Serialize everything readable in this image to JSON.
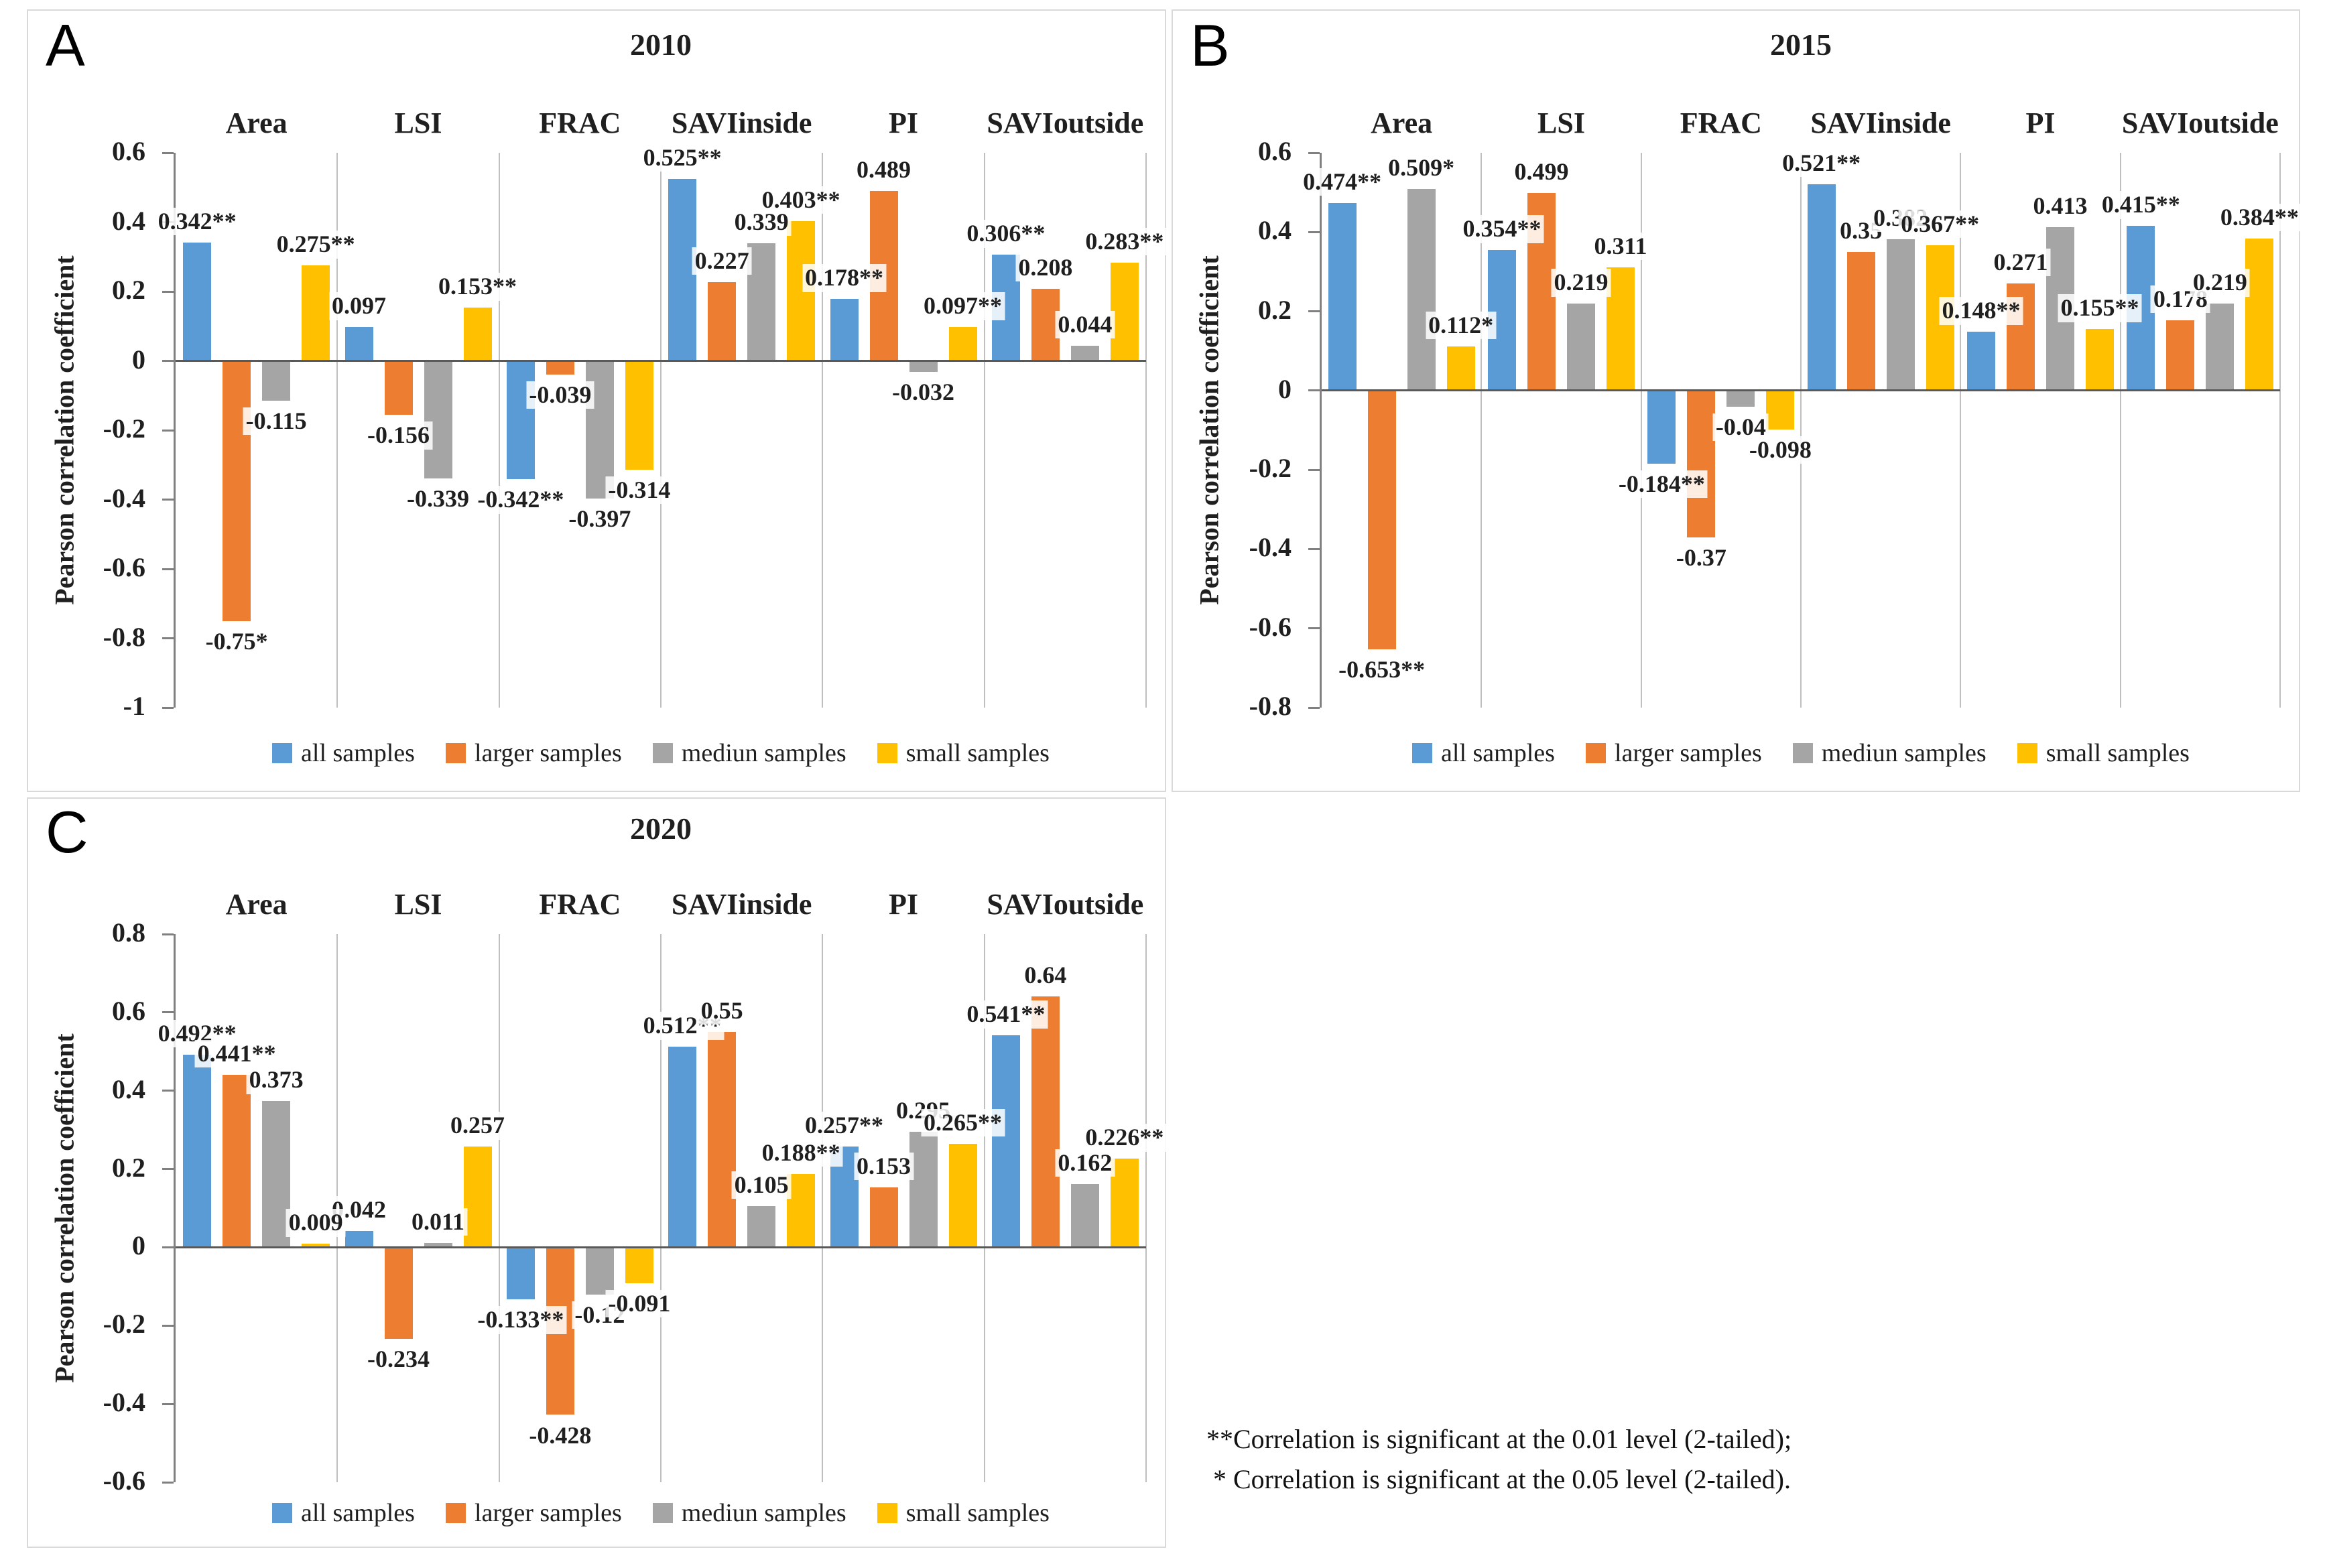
{
  "page": {
    "background": "#ffffff"
  },
  "palette": {
    "all_samples": "#5B9BD5",
    "larger_samples": "#ED7D31",
    "mediun_samples": "#A5A5A5",
    "small_samples": "#FFC000",
    "axis": "#808080",
    "zero_line": "#595959",
    "separator": "#BFBFBF",
    "panel_border": "#D9D9D9"
  },
  "note": {
    "line1": "**Correlation is significant at the 0.01 level (2-tailed);",
    "line2": " * Correlation is significant at the 0.05 level (2-tailed)."
  },
  "chart_data": [
    {
      "type": "bar",
      "panel_label": "A",
      "title": "2010",
      "ylabel": "Pearson correlation coefficient",
      "ylim": [
        -1,
        0.6
      ],
      "ytick_step": 0.2,
      "grid": "vertical-category-separators",
      "legend_position": "bottom",
      "categories": [
        "Area",
        "LSI",
        "FRAC",
        "SAVIinside",
        "PI",
        "SAVIoutside"
      ],
      "series": [
        {
          "name": "all samples",
          "color": "#5B9BD5",
          "values": [
            0.342,
            0.097,
            -0.342,
            0.525,
            0.178,
            0.306
          ],
          "labels": [
            "0.342**",
            "0.097",
            "-0.342**",
            "0.525**",
            "0.178**",
            "0.306**"
          ]
        },
        {
          "name": "larger samples",
          "color": "#ED7D31",
          "values": [
            -0.75,
            -0.156,
            -0.039,
            0.227,
            0.489,
            0.208
          ],
          "labels": [
            "-0.75*",
            "-0.156",
            "-0.039",
            "0.227",
            "0.489",
            "0.208"
          ]
        },
        {
          "name": "mediun samples",
          "color": "#A5A5A5",
          "values": [
            -0.115,
            -0.339,
            -0.397,
            0.339,
            -0.032,
            0.044
          ],
          "labels": [
            "-0.115",
            "-0.339",
            "-0.397",
            "0.339",
            "-0.032",
            "0.044"
          ]
        },
        {
          "name": "small samples",
          "color": "#FFC000",
          "values": [
            0.275,
            0.153,
            -0.314,
            0.403,
            0.097,
            0.283
          ],
          "labels": [
            "0.275**",
            "0.153**",
            "-0.314",
            "0.403**",
            "0.097**",
            "0.283**"
          ]
        }
      ]
    },
    {
      "type": "bar",
      "panel_label": "B",
      "title": "2015",
      "ylabel": "Pearson correlation coefficient",
      "ylim": [
        -0.8,
        0.6
      ],
      "ytick_step": 0.2,
      "grid": "vertical-category-separators",
      "legend_position": "bottom",
      "categories": [
        "Area",
        "LSI",
        "FRAC",
        "SAVIinside",
        "PI",
        "SAVIoutside"
      ],
      "series": [
        {
          "name": "all samples",
          "color": "#5B9BD5",
          "values": [
            0.474,
            0.354,
            -0.184,
            0.521,
            0.148,
            0.415
          ],
          "labels": [
            "0.474**",
            "0.354**",
            "-0.184**",
            "0.521**",
            "0.148**",
            "0.415**"
          ]
        },
        {
          "name": "larger samples",
          "color": "#ED7D31",
          "values": [
            -0.653,
            0.499,
            -0.37,
            0.35,
            0.271,
            0.178
          ],
          "labels": [
            "-0.653**",
            "0.499",
            "-0.37",
            "0.35",
            "0.271",
            "0.178"
          ]
        },
        {
          "name": "mediun samples",
          "color": "#A5A5A5",
          "values": [
            0.509,
            0.219,
            -0.04,
            0.382,
            0.413,
            0.219
          ],
          "labels": [
            "0.509*",
            "0.219",
            "-0.04",
            "0.382",
            "0.413",
            "0.219"
          ]
        },
        {
          "name": "small samples",
          "color": "#FFC000",
          "values": [
            0.112,
            0.311,
            -0.098,
            0.367,
            0.155,
            0.384
          ],
          "labels": [
            "0.112*",
            "0.311",
            "-0.098",
            "0.367**",
            "0.155**",
            "0.384**"
          ]
        }
      ]
    },
    {
      "type": "bar",
      "panel_label": "C",
      "title": "2020",
      "ylabel": "Pearson correlation coefficient",
      "ylim": [
        -0.6,
        0.8
      ],
      "ytick_step": 0.2,
      "grid": "vertical-category-separators",
      "legend_position": "bottom",
      "categories": [
        "Area",
        "LSI",
        "FRAC",
        "SAVIinside",
        "PI",
        "SAVIoutside"
      ],
      "series": [
        {
          "name": "all samples",
          "color": "#5B9BD5",
          "values": [
            0.492,
            0.042,
            -0.133,
            0.512,
            0.257,
            0.541
          ],
          "labels": [
            "0.492**",
            "0.042",
            "-0.133**",
            "0.512**",
            "0.257**",
            "0.541**"
          ]
        },
        {
          "name": "larger samples",
          "color": "#ED7D31",
          "values": [
            0.441,
            -0.234,
            -0.428,
            0.55,
            0.153,
            0.64
          ],
          "labels": [
            "0.441**",
            "-0.234",
            "-0.428",
            "0.55",
            "0.153",
            "0.64"
          ]
        },
        {
          "name": "mediun samples",
          "color": "#A5A5A5",
          "values": [
            0.373,
            0.011,
            -0.12,
            0.105,
            0.295,
            0.162
          ],
          "labels": [
            "0.373",
            "0.011",
            "-0.12",
            "0.105",
            "0.295",
            "0.162"
          ]
        },
        {
          "name": "small samples",
          "color": "#FFC000",
          "values": [
            0.009,
            0.257,
            -0.091,
            0.188,
            0.265,
            0.226
          ],
          "labels": [
            "0.009",
            "0.257",
            "-0.091",
            "0.188**",
            "0.265**",
            "0.226**"
          ]
        }
      ]
    }
  ]
}
